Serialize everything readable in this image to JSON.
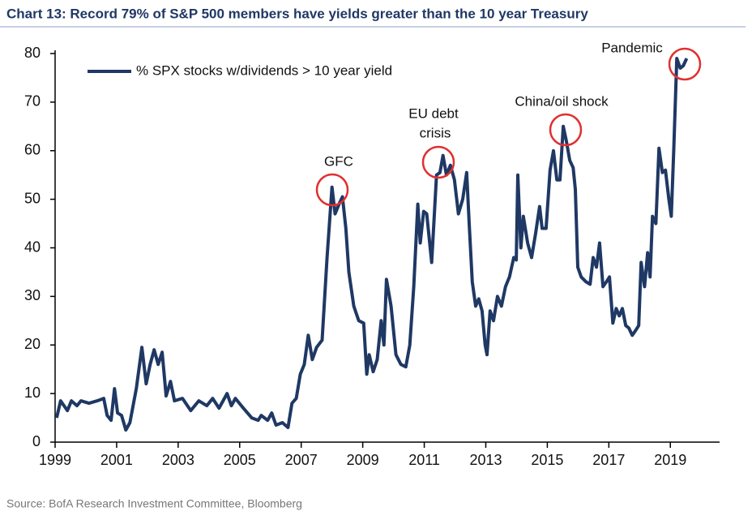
{
  "chart_data": {
    "type": "line",
    "title": "Chart 13: Record 79% of S&P 500 members have yields greater than the 10 year Treasury",
    "source": "Source: BofA Research Investment Committee, Bloomberg",
    "annotations": [
      "GFC",
      "EU debt",
      "crisis",
      "China/oil shock",
      "Pandemic"
    ],
    "xlim": [
      1999,
      2020.6
    ],
    "xticks": [
      1999,
      2001,
      2003,
      2005,
      2007,
      2009,
      2011,
      2013,
      2015,
      2017,
      2019
    ],
    "ylim": [
      0,
      80
    ],
    "yticks": [
      0,
      10,
      20,
      30,
      40,
      50,
      60,
      70,
      80
    ],
    "legend": "upper left",
    "x": [
      1999.05,
      1999.18,
      1999.4,
      1999.53,
      1999.71,
      1999.84,
      2000.1,
      2000.37,
      2000.58,
      2000.69,
      2000.82,
      2000.93,
      2001.03,
      2001.16,
      2001.3,
      2001.43,
      2001.64,
      2001.82,
      2001.96,
      2002.09,
      2002.22,
      2002.35,
      2002.48,
      2002.61,
      2002.75,
      2002.88,
      2003.14,
      2003.41,
      2003.67,
      2003.93,
      2004.12,
      2004.33,
      2004.59,
      2004.73,
      2004.86,
      2005.12,
      2005.39,
      2005.6,
      2005.7,
      2005.91,
      2006.04,
      2006.18,
      2006.39,
      2006.57,
      2006.7,
      2006.84,
      2006.97,
      2007.1,
      2007.23,
      2007.36,
      2007.5,
      2007.68,
      2007.84,
      2008.0,
      2008.1,
      2008.23,
      2008.34,
      2008.45,
      2008.55,
      2008.71,
      2008.87,
      2009.03,
      2009.13,
      2009.21,
      2009.34,
      2009.47,
      2009.6,
      2009.69,
      2009.77,
      2009.92,
      2010.08,
      2010.24,
      2010.4,
      2010.53,
      2010.66,
      2010.79,
      2010.87,
      2010.98,
      2011.08,
      2011.24,
      2011.4,
      2011.51,
      2011.61,
      2011.72,
      2011.85,
      2011.98,
      2012.11,
      2012.25,
      2012.38,
      2012.46,
      2012.56,
      2012.67,
      2012.77,
      2012.88,
      2012.98,
      2013.04,
      2013.14,
      2013.25,
      2013.38,
      2013.51,
      2013.64,
      2013.77,
      2013.91,
      2013.99,
      2014.04,
      2014.14,
      2014.22,
      2014.36,
      2014.49,
      2014.62,
      2014.75,
      2014.83,
      2014.96,
      2015.09,
      2015.2,
      2015.31,
      2015.41,
      2015.52,
      2015.62,
      2015.73,
      2015.84,
      2015.91,
      2015.99,
      2016.1,
      2016.26,
      2016.39,
      2016.49,
      2016.6,
      2016.7,
      2016.81,
      2016.92,
      2017.02,
      2017.13,
      2017.24,
      2017.34,
      2017.44,
      2017.55,
      2017.65,
      2017.76,
      2017.87,
      2017.97,
      2018.05,
      2018.16,
      2018.26,
      2018.34,
      2018.42,
      2018.53,
      2018.63,
      2018.74,
      2018.84,
      2018.95,
      2019.03,
      2019.11,
      2019.21,
      2019.32,
      2019.42,
      2019.53
    ],
    "series": [
      {
        "name": "% SPX stocks w/dividends > 10 year yield",
        "color": "#1f3864",
        "values": [
          5,
          8.5,
          6.5,
          8.5,
          7.5,
          8.5,
          8,
          8.5,
          9,
          5.5,
          4.5,
          11,
          6,
          5.5,
          2.5,
          4,
          11,
          19.5,
          12,
          16,
          19,
          16,
          18.5,
          9.5,
          12.5,
          8.5,
          9,
          6.5,
          8.5,
          7.5,
          9,
          7,
          10,
          7.5,
          9,
          7,
          5,
          4.5,
          5.5,
          4.5,
          6,
          3.5,
          4,
          3,
          8,
          9,
          14,
          16,
          22,
          17,
          19.5,
          21,
          38,
          52.5,
          47,
          49,
          50.5,
          44,
          35,
          28,
          25,
          24.5,
          14,
          18,
          14.5,
          17,
          25,
          20,
          33.5,
          28,
          18,
          16,
          15.5,
          20,
          32,
          49,
          41,
          47.5,
          47,
          37,
          55,
          55.5,
          59,
          55,
          57,
          54,
          47,
          50,
          55.5,
          45,
          33,
          28,
          29.5,
          27,
          20,
          18,
          27,
          25,
          30,
          28,
          32,
          34,
          38,
          37.5,
          55,
          40,
          46.5,
          41,
          38,
          43,
          48.5,
          44,
          44,
          56,
          60,
          54,
          54,
          65,
          62,
          58,
          56.5,
          52,
          36,
          34,
          33,
          32.5,
          38,
          36,
          41,
          32,
          33,
          34,
          24.5,
          27.5,
          26,
          27.5,
          24,
          23.5,
          22,
          23,
          24,
          37,
          32,
          39,
          34,
          46.5,
          45,
          60.5,
          55.5,
          56,
          50,
          46.5,
          60,
          79,
          77,
          77.5,
          79
        ]
      }
    ]
  }
}
